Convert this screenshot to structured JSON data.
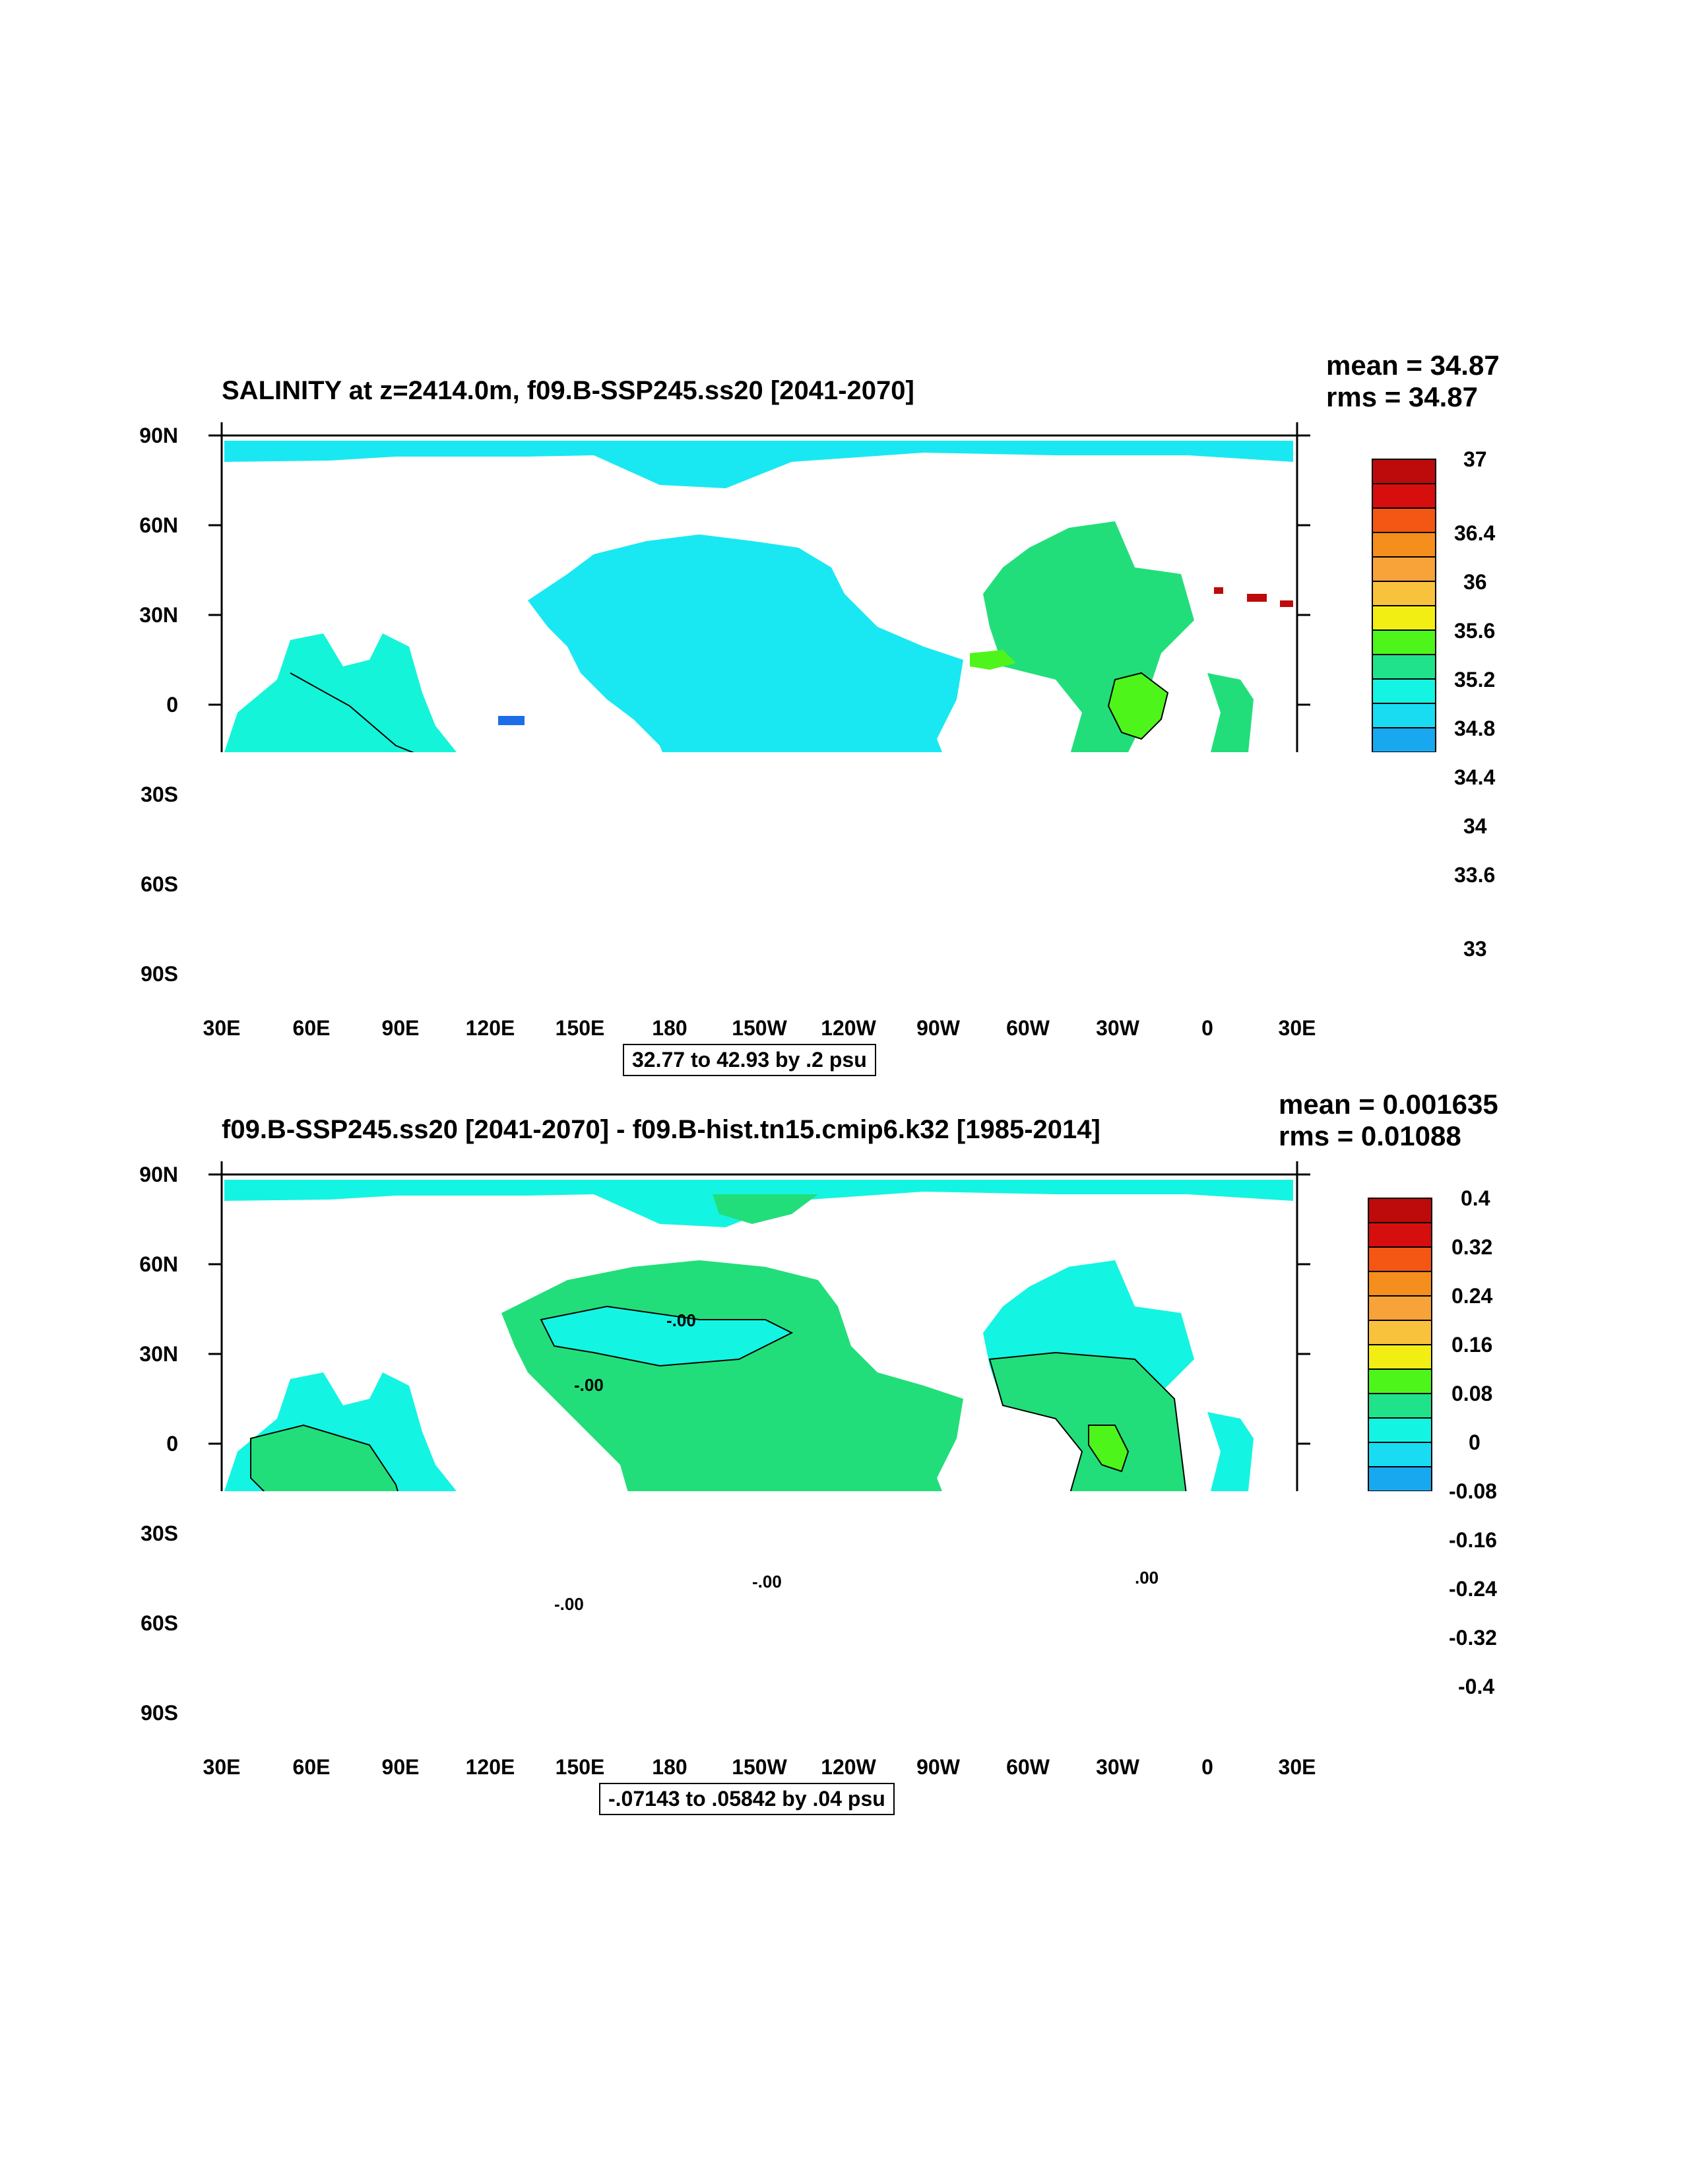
{
  "colors": {
    "land": "#ffffff",
    "palette": [
      "#6e6e6e",
      "#cccccc",
      "#e21ed4",
      "#9012d8",
      "#0c1ef0",
      "#1c6ee8",
      "#18a8f0",
      "#19dcf2",
      "#14f4e2",
      "#1fe28a",
      "#4ef51a",
      "#f2ee13",
      "#f8c23c",
      "#f8a23a",
      "#f48e1c",
      "#f45614",
      "#ea1812",
      "#d60e0e",
      "#bd0a0a"
    ],
    "pacific_top": "#19e8f2",
    "southern_top": "#14f4d8",
    "atlantic_top": "#22de7a",
    "diff_positive": "#22de7a",
    "diff_negative": "#14f4e2"
  },
  "panels": [
    {
      "title": "SALINITY at z=2414.0m, f09.B-SSP245.ss20 [2041-2070]",
      "mean": "mean = 34.87",
      "rms": "rms = 34.87",
      "info": "32.77 to 42.93 by .2 psu",
      "y_labels": [
        "90N",
        "60N",
        "30N",
        "0",
        "30S",
        "60S",
        "90S"
      ],
      "x_labels": [
        "30E",
        "60E",
        "90E",
        "120E",
        "150E",
        "180",
        "150W",
        "120W",
        "90W",
        "60W",
        "30W",
        "0",
        "30E"
      ],
      "colorbar_labels": [
        "37",
        "36.4",
        "36",
        "35.6",
        "35.2",
        "34.8",
        "34.4",
        "34",
        "33.6",
        "33"
      ],
      "contour_labels": []
    },
    {
      "title": "f09.B-SSP245.ss20 [2041-2070] - f09.B-hist.tn15.cmip6.k32 [1985-2014]",
      "mean": "mean = 0.001635",
      "rms": "rms = 0.01088",
      "info": "-.07143 to .05842 by .04 psu",
      "y_labels": [
        "90N",
        "60N",
        "30N",
        "0",
        "30S",
        "60S",
        "90S"
      ],
      "x_labels": [
        "30E",
        "60E",
        "90E",
        "120E",
        "150E",
        "180",
        "150W",
        "120W",
        "90W",
        "60W",
        "30W",
        "0",
        "30E"
      ],
      "colorbar_labels": [
        "0.4",
        "0.32",
        "0.24",
        "0.16",
        "0.08",
        "0",
        "-0.08",
        "-0.16",
        "-0.24",
        "-0.32",
        "-0.4"
      ],
      "contour_labels": [
        "-.00",
        "-.00",
        "-.00",
        "-.00",
        ".00"
      ]
    }
  ]
}
